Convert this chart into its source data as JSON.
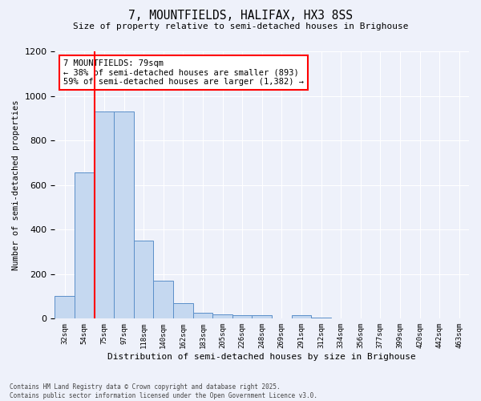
{
  "title1": "7, MOUNTFIELDS, HALIFAX, HX3 8SS",
  "title2": "Size of property relative to semi-detached houses in Brighouse",
  "xlabel": "Distribution of semi-detached houses by size in Brighouse",
  "ylabel": "Number of semi-detached properties",
  "categories": [
    "32sqm",
    "54sqm",
    "75sqm",
    "97sqm",
    "118sqm",
    "140sqm",
    "162sqm",
    "183sqm",
    "205sqm",
    "226sqm",
    "248sqm",
    "269sqm",
    "291sqm",
    "312sqm",
    "334sqm",
    "356sqm",
    "377sqm",
    "399sqm",
    "420sqm",
    "442sqm",
    "463sqm"
  ],
  "values": [
    103,
    655,
    930,
    930,
    350,
    170,
    70,
    25,
    20,
    15,
    15,
    0,
    15,
    5,
    0,
    0,
    0,
    0,
    0,
    0,
    0
  ],
  "bar_color": "#c5d8f0",
  "bar_edge_color": "#5b8fc9",
  "vline_x_index": 2,
  "vline_color": "red",
  "annotation_title": "7 MOUNTFIELDS: 79sqm",
  "annotation_line1": "← 38% of semi-detached houses are smaller (893)",
  "annotation_line2": "59% of semi-detached houses are larger (1,382) →",
  "annotation_box_color": "white",
  "annotation_box_edge": "red",
  "ylim": [
    0,
    1200
  ],
  "yticks": [
    0,
    200,
    400,
    600,
    800,
    1000,
    1200
  ],
  "footer": "Contains HM Land Registry data © Crown copyright and database right 2025.\nContains public sector information licensed under the Open Government Licence v3.0.",
  "bg_color": "#eef1fa"
}
